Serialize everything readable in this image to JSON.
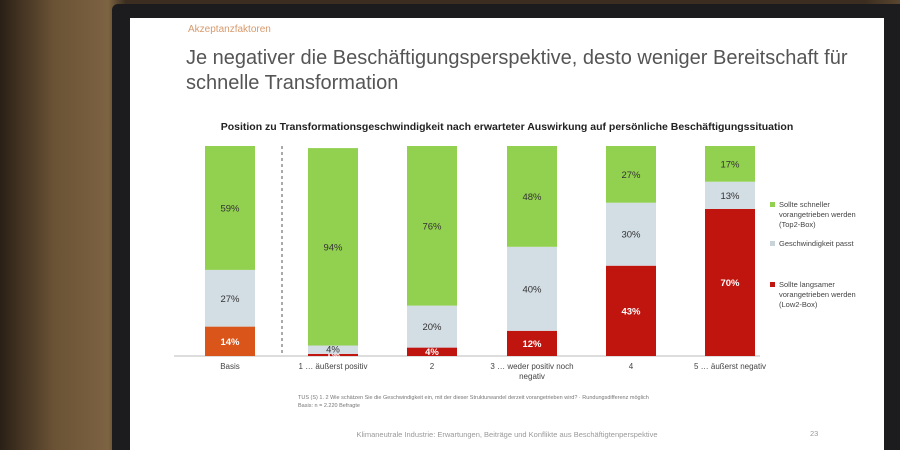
{
  "slide": {
    "kicker": "Akzeptanzfaktoren",
    "title": "Je negativer die Beschäftigungsperspektive, desto weniger Bereitschaft für schnelle Transformation",
    "footnote": "TUS (S) 1. 2 Wie schätzen Sie die Geschwindigkeit ein, mit der dieser Strukturwandel derzeit vorangetrieben wird? · Rundungsdifferenz möglich",
    "base": "Basis: n = 2.220 Befragte",
    "footer": "Klimaneutrale Industrie: Erwartungen, Beiträge und Konflikte aus Beschäftigtenperspektive",
    "page_number": "23"
  },
  "colors": {
    "faster": "#92d050",
    "neutral": "#d3dde4",
    "slower": "#c0150f",
    "slower_basis": "#d9551a"
  },
  "chart_data": {
    "type": "bar",
    "stacked": true,
    "title": "Position zu Transformationsgeschwindigkeit nach erwarteter Auswirkung auf persönliche Beschäftigungssituation",
    "categories": [
      "Basis",
      "1 … äußerst positiv",
      "2",
      "3 … weder positiv noch negativ",
      "4",
      "5 … äußerst negativ"
    ],
    "ylim": [
      0,
      100
    ],
    "legend_position": "right",
    "series": [
      {
        "name": "Sollte langsamer vorangetrieben werden (Low2-Box)",
        "values": [
          14,
          1,
          4,
          12,
          43,
          70
        ],
        "labels": [
          "14%",
          "1%",
          "4%",
          "12%",
          "43%",
          "70%"
        ]
      },
      {
        "name": "Geschwindigkeit passt",
        "values": [
          27,
          4,
          20,
          40,
          30,
          13
        ],
        "labels": [
          "27%",
          "4%",
          "20%",
          "40%",
          "30%",
          "13%"
        ]
      },
      {
        "name": "Sollte schneller vorangetrieben werden (Top2-Box)",
        "values": [
          59,
          94,
          76,
          48,
          27,
          17
        ],
        "labels": [
          "59%",
          "94%",
          "76%",
          "48%",
          "27%",
          "17%"
        ]
      }
    ]
  }
}
